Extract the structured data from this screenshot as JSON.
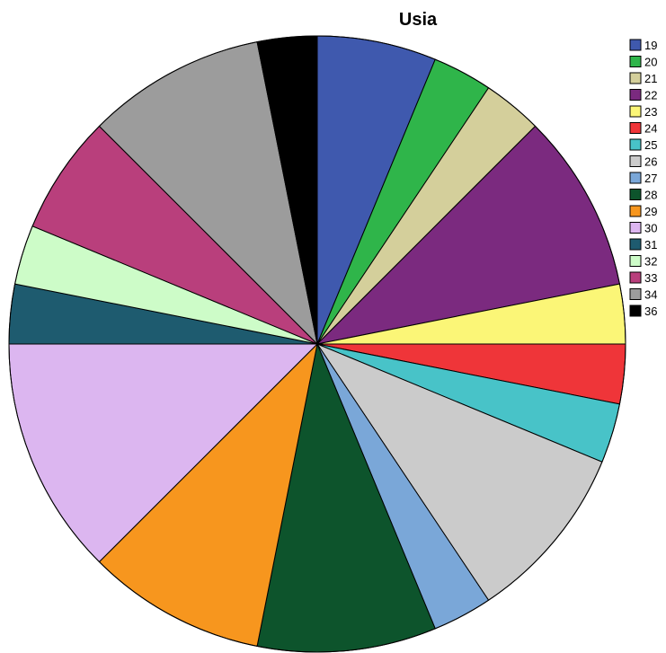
{
  "chart_data": {
    "type": "pie",
    "title": "Usia",
    "legend_position": "right",
    "categories": [
      "19",
      "20",
      "21",
      "22",
      "23",
      "24",
      "25",
      "26",
      "27",
      "28",
      "29",
      "30",
      "31",
      "32",
      "33",
      "34",
      "36"
    ],
    "values": [
      2,
      1,
      1,
      3,
      1,
      1,
      1,
      3,
      1,
      3,
      3,
      4,
      1,
      1,
      2,
      3,
      1
    ],
    "colors": [
      "#3f59ae",
      "#2fb54a",
      "#d4cf9b",
      "#7b2a7f",
      "#fbf677",
      "#ef3539",
      "#48c3c8",
      "#cbcbcb",
      "#7aa7d8",
      "#0d542c",
      "#f7961e",
      "#dcb6f0",
      "#1e5b6f",
      "#cdfcc8",
      "#b93f7c",
      "#9c9c9c",
      "#000000"
    ]
  }
}
